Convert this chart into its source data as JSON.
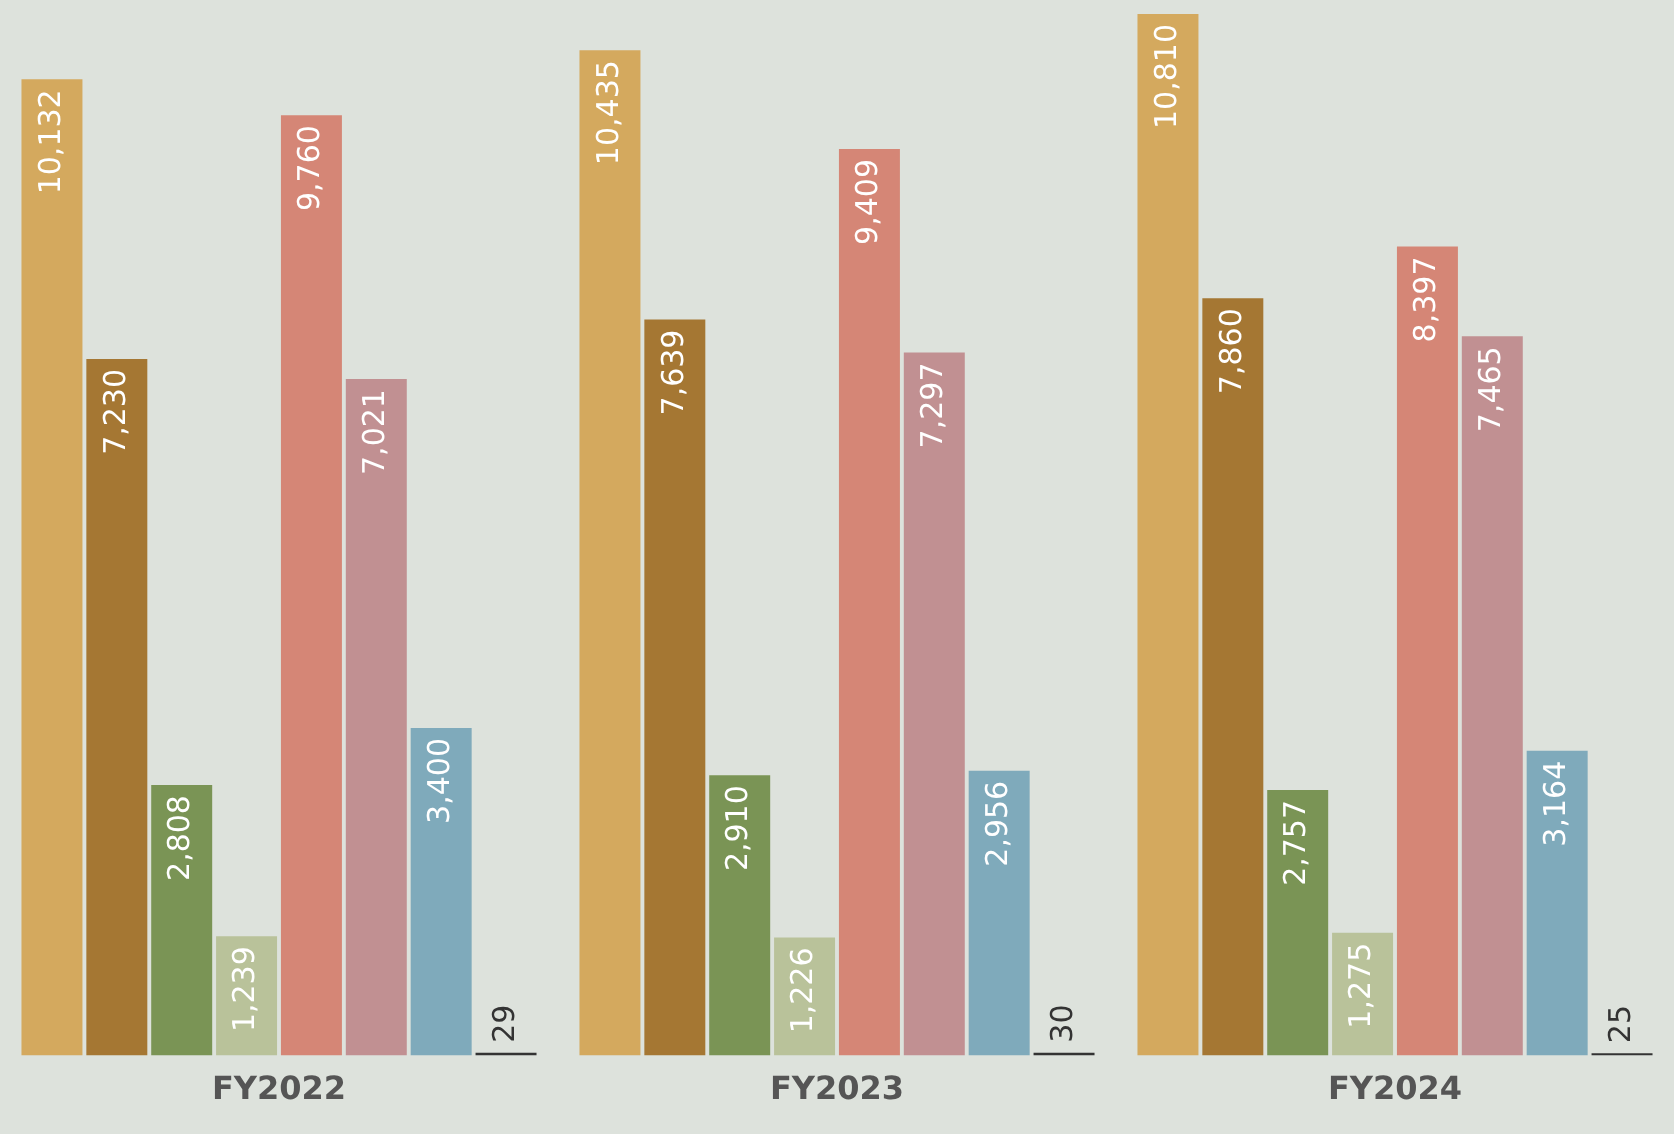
{
  "chart_data": {
    "type": "bar",
    "categories": [
      "FY2022",
      "FY2023",
      "FY2024"
    ],
    "series": [
      {
        "color": "#d4a95e",
        "values": [
          10132,
          10435,
          10810
        ],
        "value_labels": [
          "10,132",
          "10,435",
          "10,810"
        ]
      },
      {
        "color": "#a57733",
        "values": [
          7230,
          7639,
          7860
        ],
        "value_labels": [
          "7,230",
          "7,639",
          "7,860"
        ]
      },
      {
        "color": "#7a9455",
        "values": [
          2808,
          2910,
          2757
        ],
        "value_labels": [
          "2,808",
          "2,910",
          "2,757"
        ]
      },
      {
        "color": "#b9c29a",
        "values": [
          1239,
          1226,
          1275
        ],
        "value_labels": [
          "1,239",
          "1,226",
          "1,275"
        ]
      },
      {
        "color": "#d58676",
        "values": [
          9760,
          9409,
          8397
        ],
        "value_labels": [
          "9,760",
          "9,409",
          "8,397"
        ]
      },
      {
        "color": "#c19092",
        "values": [
          7021,
          7297,
          7465
        ],
        "value_labels": [
          "7,021",
          "7,297",
          "7,465"
        ]
      },
      {
        "color": "#7faabb",
        "values": [
          3400,
          2956,
          3164
        ],
        "value_labels": [
          "3,400",
          "2,956",
          "3,164"
        ]
      },
      {
        "color": "#333333",
        "values": [
          29,
          30,
          25
        ],
        "value_labels": [
          "29",
          "30",
          "25"
        ]
      }
    ],
    "legend": false,
    "grid": false
  }
}
